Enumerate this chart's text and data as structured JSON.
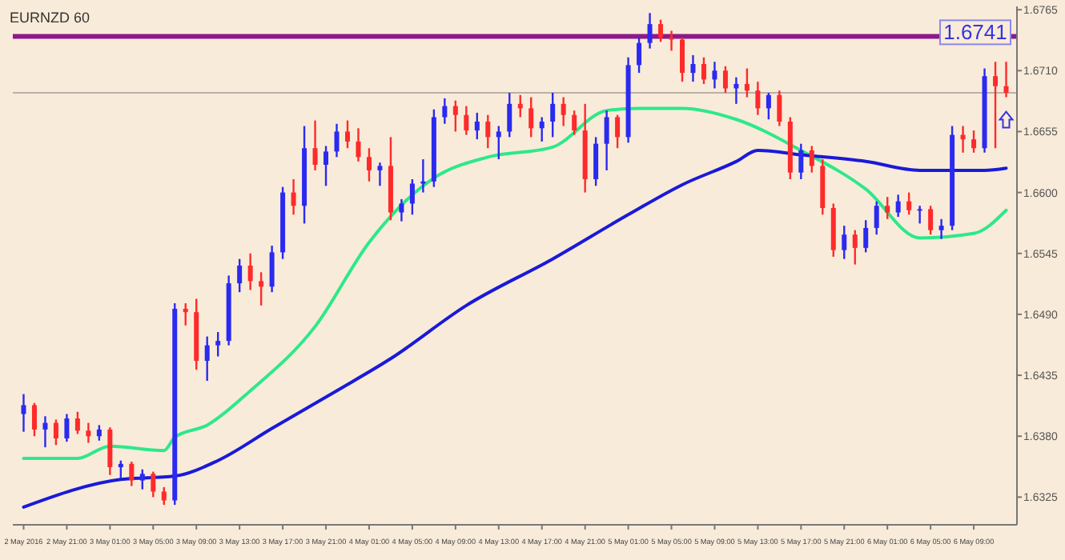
{
  "chart_data": {
    "type": "candlestick",
    "title": "EURNZD 60",
    "x": [
      "2016-05-02T17:00",
      "2016-05-02T18:00",
      "2016-05-02T19:00",
      "2016-05-02T20:00",
      "2016-05-02T21:00",
      "2016-05-02T22:00",
      "2016-05-02T23:00",
      "2016-05-03T00:00",
      "2016-05-03T01:00",
      "2016-05-03T02:00",
      "2016-05-03T03:00",
      "2016-05-03T04:00",
      "2016-05-03T05:00",
      "2016-05-03T06:00",
      "2016-05-03T07:00",
      "2016-05-03T08:00",
      "2016-05-03T09:00",
      "2016-05-03T10:00",
      "2016-05-03T11:00",
      "2016-05-03T12:00",
      "2016-05-03T13:00",
      "2016-05-03T14:00",
      "2016-05-03T15:00",
      "2016-05-03T16:00",
      "2016-05-03T17:00",
      "2016-05-03T18:00",
      "2016-05-03T19:00",
      "2016-05-03T20:00",
      "2016-05-03T21:00",
      "2016-05-03T22:00",
      "2016-05-03T23:00",
      "2016-05-04T00:00",
      "2016-05-04T01:00",
      "2016-05-04T02:00",
      "2016-05-04T03:00",
      "2016-05-04T04:00",
      "2016-05-04T05:00",
      "2016-05-04T06:00",
      "2016-05-04T07:00",
      "2016-05-04T08:00",
      "2016-05-04T09:00",
      "2016-05-04T10:00",
      "2016-05-04T11:00",
      "2016-05-04T12:00",
      "2016-05-04T13:00",
      "2016-05-04T14:00",
      "2016-05-04T15:00",
      "2016-05-04T16:00",
      "2016-05-04T17:00",
      "2016-05-04T18:00",
      "2016-05-04T19:00",
      "2016-05-04T20:00",
      "2016-05-04T21:00",
      "2016-05-04T22:00",
      "2016-05-04T23:00",
      "2016-05-05T00:00",
      "2016-05-05T01:00",
      "2016-05-05T02:00",
      "2016-05-05T03:00",
      "2016-05-05T04:00",
      "2016-05-05T05:00",
      "2016-05-05T06:00",
      "2016-05-05T07:00",
      "2016-05-05T08:00",
      "2016-05-05T09:00",
      "2016-05-05T10:00",
      "2016-05-05T11:00",
      "2016-05-05T12:00",
      "2016-05-05T13:00",
      "2016-05-05T14:00",
      "2016-05-05T15:00",
      "2016-05-05T16:00",
      "2016-05-05T17:00",
      "2016-05-05T18:00",
      "2016-05-05T19:00",
      "2016-05-05T20:00",
      "2016-05-05T21:00",
      "2016-05-05T22:00",
      "2016-05-05T23:00",
      "2016-05-06T00:00",
      "2016-05-06T01:00",
      "2016-05-06T02:00",
      "2016-05-06T03:00",
      "2016-05-06T04:00",
      "2016-05-06T05:00",
      "2016-05-06T06:00",
      "2016-05-06T07:00",
      "2016-05-06T08:00",
      "2016-05-06T09:00",
      "2016-05-06T10:00",
      "2016-05-06T11:00",
      "2016-05-06T12:00"
    ],
    "xlim": [
      "2016-05-02T16:00",
      "2016-05-06T13:00"
    ],
    "xticks": [
      {
        "value": "2016-05-02T17:00",
        "label": "2 May 2016"
      },
      {
        "value": "2016-05-02T21:00",
        "label": "2 May 21:00"
      },
      {
        "value": "2016-05-03T01:00",
        "label": "3 May 01:00"
      },
      {
        "value": "2016-05-03T05:00",
        "label": "3 May 05:00"
      },
      {
        "value": "2016-05-03T09:00",
        "label": "3 May 09:00"
      },
      {
        "value": "2016-05-03T13:00",
        "label": "3 May 13:00"
      },
      {
        "value": "2016-05-03T17:00",
        "label": "3 May 17:00"
      },
      {
        "value": "2016-05-03T21:00",
        "label": "3 May 21:00"
      },
      {
        "value": "2016-05-04T01:00",
        "label": "4 May 01:00"
      },
      {
        "value": "2016-05-04T05:00",
        "label": "4 May 05:00"
      },
      {
        "value": "2016-05-04T09:00",
        "label": "4 May 09:00"
      },
      {
        "value": "2016-05-04T13:00",
        "label": "4 May 13:00"
      },
      {
        "value": "2016-05-04T17:00",
        "label": "4 May 17:00"
      },
      {
        "value": "2016-05-04T21:00",
        "label": "4 May 21:00"
      },
      {
        "value": "2016-05-05T01:00",
        "label": "5 May 01:00"
      },
      {
        "value": "2016-05-05T05:00",
        "label": "5 May 05:00"
      },
      {
        "value": "2016-05-05T09:00",
        "label": "5 May 09:00"
      },
      {
        "value": "2016-05-05T13:00",
        "label": "5 May 13:00"
      },
      {
        "value": "2016-05-05T17:00",
        "label": "5 May 17:00"
      },
      {
        "value": "2016-05-05T21:00",
        "label": "5 May 21:00"
      },
      {
        "value": "2016-05-06T01:00",
        "label": "6 May 01:00"
      },
      {
        "value": "2016-05-06T05:00",
        "label": "6 May 05:00"
      },
      {
        "value": "2016-05-06T09:00",
        "label": "6 May 09:00"
      }
    ],
    "colors": [
      "#2a2af0",
      "#ff2a2a",
      "#2a2af0",
      "#ff2a2a",
      "#2a2af0",
      "#ff2a2a",
      "#ff2a2a",
      "#2a2af0",
      "#ff2a2a",
      "#2a2af0",
      "#ff2a2a",
      "#2a2af0",
      "#ff2a2a",
      "#ff2a2a",
      "#2a2af0",
      "#ff2a2a",
      "#ff2a2a",
      "#2a2af0",
      "#2a2af0",
      "#2a2af0",
      "#2a2af0",
      "#ff2a2a",
      "#ff2a2a",
      "#2a2af0",
      "#2a2af0",
      "#ff2a2a",
      "#2a2af0",
      "#ff2a2a",
      "#2a2af0",
      "#2a2af0",
      "#ff2a2a",
      "#ff2a2a",
      "#ff2a2a",
      "#2a2af0",
      "#ff2a2a",
      "#2a2af0",
      "#2a2af0",
      "#2a2af0",
      "#2a2af0",
      "#2a2af0",
      "#ff2a2a",
      "#ff2a2a",
      "#2a2af0",
      "#ff2a2a",
      "#2a2af0",
      "#2a2af0",
      "#ff2a2a",
      "#ff2a2a",
      "#2a2af0",
      "#2a2af0",
      "#ff2a2a",
      "#ff2a2a",
      "#ff2a2a",
      "#2a2af0",
      "#2a2af0",
      "#ff2a2a",
      "#2a2af0",
      "#2a2af0",
      "#2a2af0",
      "#ff2a2a",
      "#ff2a2a",
      "#ff2a2a",
      "#2a2af0",
      "#ff2a2a",
      "#2a2af0",
      "#ff2a2a",
      "#2a2af0",
      "#ff2a2a",
      "#ff2a2a",
      "#2a2af0",
      "#ff2a2a",
      "#ff2a2a",
      "#2a2af0",
      "#ff2a2a",
      "#ff2a2a",
      "#ff2a2a",
      "#2a2af0",
      "#ff2a2a",
      "#2a2af0",
      "#2a2af0",
      "#ff2a2a",
      "#2a2af0",
      "#ff2a2a",
      "#2a2af0",
      "#ff2a2a",
      "#2a2af0",
      "#2a2af0",
      "#ff2a2a",
      "#ff2a2a",
      "#2a2af0",
      "#ff2a2a",
      "#ff2a2a"
    ],
    "ohlc": [
      [
        1.64,
        1.6418,
        1.6384,
        1.6408
      ],
      [
        1.6408,
        1.641,
        1.638,
        1.6386
      ],
      [
        1.6386,
        1.6398,
        1.637,
        1.6392
      ],
      [
        1.6392,
        1.6395,
        1.6372,
        1.6378
      ],
      [
        1.6378,
        1.64,
        1.6375,
        1.6396
      ],
      [
        1.6396,
        1.6402,
        1.6382,
        1.6385
      ],
      [
        1.6385,
        1.6392,
        1.6374,
        1.638
      ],
      [
        1.638,
        1.639,
        1.6376,
        1.6386
      ],
      [
        1.6386,
        1.6388,
        1.6345,
        1.6352
      ],
      [
        1.6352,
        1.6358,
        1.6342,
        1.6355
      ],
      [
        1.6355,
        1.6357,
        1.6335,
        1.634
      ],
      [
        1.634,
        1.635,
        1.6332,
        1.6346
      ],
      [
        1.6346,
        1.6348,
        1.6325,
        1.633
      ],
      [
        1.633,
        1.6334,
        1.6318,
        1.6322
      ],
      [
        1.6322,
        1.65,
        1.6318,
        1.6495
      ],
      [
        1.6495,
        1.65,
        1.648,
        1.6492
      ],
      [
        1.6492,
        1.6504,
        1.644,
        1.6448
      ],
      [
        1.6448,
        1.647,
        1.643,
        1.6462
      ],
      [
        1.6462,
        1.6474,
        1.6452,
        1.6466
      ],
      [
        1.6466,
        1.6525,
        1.6462,
        1.6518
      ],
      [
        1.6518,
        1.654,
        1.651,
        1.6534
      ],
      [
        1.6534,
        1.6545,
        1.6512,
        1.652
      ],
      [
        1.652,
        1.6528,
        1.6498,
        1.6515
      ],
      [
        1.6515,
        1.6552,
        1.651,
        1.6546
      ],
      [
        1.6546,
        1.6605,
        1.654,
        1.66
      ],
      [
        1.66,
        1.6612,
        1.658,
        1.6588
      ],
      [
        1.6588,
        1.666,
        1.6572,
        1.664
      ],
      [
        1.664,
        1.6665,
        1.662,
        1.6625
      ],
      [
        1.6625,
        1.6642,
        1.6606,
        1.6637
      ],
      [
        1.6637,
        1.6662,
        1.6632,
        1.6655
      ],
      [
        1.6655,
        1.6665,
        1.664,
        1.6646
      ],
      [
        1.6646,
        1.6658,
        1.6628,
        1.6632
      ],
      [
        1.6632,
        1.664,
        1.661,
        1.662
      ],
      [
        1.662,
        1.6627,
        1.6606,
        1.6624
      ],
      [
        1.6624,
        1.665,
        1.6575,
        1.6582
      ],
      [
        1.6582,
        1.6594,
        1.6574,
        1.659
      ],
      [
        1.659,
        1.6612,
        1.658,
        1.6608
      ],
      [
        1.6608,
        1.663,
        1.66,
        1.661
      ],
      [
        1.661,
        1.6675,
        1.6605,
        1.6668
      ],
      [
        1.6668,
        1.6685,
        1.6662,
        1.6678
      ],
      [
        1.6678,
        1.6683,
        1.6655,
        1.667
      ],
      [
        1.667,
        1.6678,
        1.6652,
        1.6656
      ],
      [
        1.6656,
        1.6672,
        1.6648,
        1.6664
      ],
      [
        1.6664,
        1.667,
        1.664,
        1.665
      ],
      [
        1.665,
        1.666,
        1.663,
        1.6655
      ],
      [
        1.6655,
        1.669,
        1.665,
        1.668
      ],
      [
        1.668,
        1.6688,
        1.6668,
        1.6676
      ],
      [
        1.6676,
        1.6686,
        1.665,
        1.6658
      ],
      [
        1.6658,
        1.6668,
        1.6646,
        1.6664
      ],
      [
        1.6664,
        1.669,
        1.665,
        1.668
      ],
      [
        1.668,
        1.6686,
        1.666,
        1.667
      ],
      [
        1.667,
        1.6674,
        1.6652,
        1.6656
      ],
      [
        1.6656,
        1.668,
        1.66,
        1.6612
      ],
      [
        1.6612,
        1.665,
        1.6606,
        1.6644
      ],
      [
        1.6644,
        1.6674,
        1.662,
        1.6668
      ],
      [
        1.6668,
        1.667,
        1.664,
        1.665
      ],
      [
        1.665,
        1.6722,
        1.6645,
        1.6715
      ],
      [
        1.6715,
        1.674,
        1.6708,
        1.6735
      ],
      [
        1.6735,
        1.6762,
        1.673,
        1.6752
      ],
      [
        1.6752,
        1.6756,
        1.6736,
        1.674
      ],
      [
        1.674,
        1.6746,
        1.6728,
        1.6738
      ],
      [
        1.6738,
        1.674,
        1.67,
        1.6708
      ],
      [
        1.6708,
        1.6724,
        1.67,
        1.6716
      ],
      [
        1.6716,
        1.6722,
        1.6698,
        1.6702
      ],
      [
        1.6702,
        1.6718,
        1.6694,
        1.671
      ],
      [
        1.671,
        1.6714,
        1.669,
        1.6694
      ],
      [
        1.6694,
        1.6704,
        1.668,
        1.6698
      ],
      [
        1.6698,
        1.6712,
        1.6686,
        1.6692
      ],
      [
        1.6692,
        1.67,
        1.667,
        1.6676
      ],
      [
        1.6676,
        1.669,
        1.6666,
        1.6688
      ],
      [
        1.6688,
        1.6692,
        1.666,
        1.6664
      ],
      [
        1.6664,
        1.6668,
        1.6612,
        1.6618
      ],
      [
        1.6618,
        1.6644,
        1.6612,
        1.6638
      ],
      [
        1.6638,
        1.6642,
        1.6618,
        1.6624
      ],
      [
        1.6624,
        1.663,
        1.658,
        1.6586
      ],
      [
        1.6586,
        1.659,
        1.6542,
        1.6548
      ],
      [
        1.6548,
        1.657,
        1.654,
        1.6562
      ],
      [
        1.6562,
        1.6566,
        1.6535,
        1.655
      ],
      [
        1.655,
        1.6575,
        1.6546,
        1.6568
      ],
      [
        1.6568,
        1.6592,
        1.6562,
        1.6588
      ],
      [
        1.6588,
        1.6596,
        1.6576,
        1.6582
      ],
      [
        1.6582,
        1.6598,
        1.6578,
        1.6592
      ],
      [
        1.6592,
        1.66,
        1.658,
        1.6584
      ],
      [
        1.6584,
        1.6588,
        1.6572,
        1.6585
      ],
      [
        1.6585,
        1.6588,
        1.6562,
        1.6566
      ],
      [
        1.6566,
        1.6576,
        1.6558,
        1.657
      ],
      [
        1.657,
        1.666,
        1.6566,
        1.6652
      ],
      [
        1.6652,
        1.666,
        1.6636,
        1.6648
      ],
      [
        1.6648,
        1.6656,
        1.6636,
        1.664
      ],
      [
        1.664,
        1.6712,
        1.6636,
        1.6705
      ],
      [
        1.6705,
        1.6718,
        1.664,
        1.6696
      ],
      [
        1.6696,
        1.6718,
        1.6686,
        1.669
      ]
    ],
    "series": [
      {
        "type": "line",
        "color": "#2ee88a",
        "values": [
          1.636,
          null,
          null,
          null,
          null,
          1.636,
          null,
          null,
          1.6371,
          null,
          null,
          null,
          null,
          1.6367,
          1.6379,
          null,
          null,
          1.639,
          null,
          null,
          null,
          1.6421,
          null,
          null,
          null,
          null,
          null,
          1.6479,
          null,
          null,
          null,
          null,
          1.6555,
          null,
          null,
          null,
          null,
          null,
          1.6613,
          null,
          null,
          null,
          null,
          1.6632,
          null,
          null,
          null,
          null,
          null,
          1.6641,
          null,
          null,
          null,
          null,
          1.6674,
          null,
          null,
          1.6676,
          null,
          null,
          null,
          1.6676,
          null,
          null,
          null,
          null,
          1.6666,
          null,
          null,
          null,
          null,
          null,
          1.6638,
          null,
          null,
          null,
          null,
          null,
          1.6603,
          null,
          null,
          null,
          null,
          1.6559,
          null,
          null,
          null,
          null,
          1.6563,
          null,
          null,
          1.6584
        ]
      },
      {
        "type": "line",
        "color": "#1a1ad8",
        "values": [
          1.6316,
          null,
          null,
          null,
          null,
          null,
          null,
          null,
          null,
          1.6341,
          null,
          null,
          null,
          null,
          1.6344,
          null,
          null,
          null,
          1.6358,
          null,
          null,
          null,
          null,
          1.6387,
          null,
          null,
          null,
          null,
          null,
          1.6421,
          null,
          null,
          null,
          null,
          1.645,
          null,
          null,
          null,
          null,
          null,
          null,
          1.6498,
          null,
          null,
          null,
          null,
          null,
          null,
          null,
          1.654,
          null,
          null,
          null,
          null,
          null,
          null,
          1.658,
          null,
          null,
          null,
          null,
          1.6607,
          null,
          null,
          null,
          null,
          1.6628,
          null,
          1.6638,
          null,
          null,
          null,
          1.6634,
          null,
          null,
          null,
          null,
          null,
          1.6628,
          null,
          null,
          null,
          null,
          1.662,
          null,
          null,
          null,
          null,
          null,
          1.662,
          null,
          1.6622
        ]
      }
    ],
    "ylim": [
      1.63,
      1.6768
    ],
    "yticks": [
      {
        "value": 1.6765,
        "label": "1.6765"
      },
      {
        "value": 1.671,
        "label": "1.6710"
      },
      {
        "value": 1.6655,
        "label": "1.6655"
      },
      {
        "value": 1.66,
        "label": "1.6600"
      },
      {
        "value": 1.6545,
        "label": "1.6545"
      },
      {
        "value": 1.649,
        "label": "1.6490"
      },
      {
        "value": 1.6435,
        "label": "1.6435"
      },
      {
        "value": 1.638,
        "label": "1.6380"
      },
      {
        "value": 1.6325,
        "label": "1.6325"
      }
    ],
    "ref_lines": [
      {
        "axis": "y",
        "value": 1.6741,
        "label": "1.6741",
        "color": "#8b1a8b"
      },
      {
        "axis": "y",
        "value": 1.669,
        "label": null,
        "color": "#b8b0a8"
      }
    ],
    "grid": false
  }
}
